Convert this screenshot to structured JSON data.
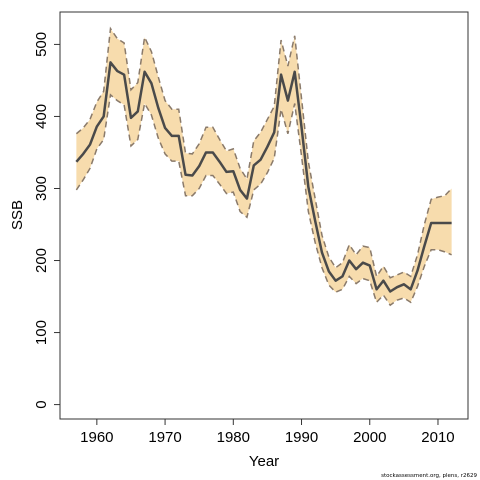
{
  "chart_data": {
    "type": "line",
    "title": "",
    "xlabel": "Year",
    "ylabel": "SSB",
    "xlim": [
      1954.6,
      2014.4
    ],
    "ylim": [
      -20,
      545
    ],
    "xticks": [
      1960,
      1970,
      1980,
      1990,
      2000,
      2010
    ],
    "yticks": [
      0,
      100,
      200,
      300,
      400,
      500
    ],
    "grid": false,
    "legend": "none",
    "colors": {
      "band": "#f7dcad",
      "line": "#4a4a4a",
      "bounds": "#8a7a6a"
    },
    "series": [
      {
        "x": [
          1957,
          1958,
          1959,
          1960,
          1961,
          1962,
          1963,
          1964,
          1965,
          1966,
          1967,
          1968,
          1969,
          1970,
          1971,
          1972,
          1973,
          1974,
          1975,
          1976,
          1977,
          1978,
          1979,
          1980,
          1981,
          1982,
          1983,
          1984,
          1985,
          1986,
          1987,
          1988,
          1989,
          1990,
          1991,
          1992,
          1993,
          1994,
          1995,
          1996,
          1997,
          1998,
          1999,
          2000,
          2001,
          2002,
          2003,
          2004,
          2005,
          2006,
          2007,
          2008,
          2009,
          2010,
          2011,
          2012
        ],
        "values": [
          337,
          348,
          361,
          386,
          400,
          475,
          463,
          458,
          398,
          407,
          462,
          446,
          412,
          384,
          373,
          373,
          319,
          318,
          331,
          350,
          350,
          337,
          323,
          324,
          298,
          286,
          332,
          340,
          358,
          378,
          458,
          422,
          462,
          385,
          302,
          255,
          211,
          185,
          172,
          178,
          200,
          188,
          197,
          193,
          160,
          172,
          157,
          163,
          167,
          160,
          186,
          220,
          252,
          252,
          252,
          252
        ],
        "lower": [
          298,
          312,
          328,
          355,
          368,
          430,
          422,
          416,
          359,
          368,
          418,
          402,
          370,
          348,
          338,
          338,
          290,
          290,
          300,
          318,
          318,
          306,
          293,
          295,
          268,
          260,
          298,
          306,
          322,
          342,
          410,
          376,
          418,
          345,
          268,
          225,
          190,
          166,
          156,
          160,
          178,
          168,
          175,
          172,
          142,
          152,
          138,
          145,
          148,
          142,
          164,
          192,
          215,
          215,
          212,
          208
        ],
        "upper": [
          376,
          384,
          396,
          420,
          435,
          522,
          508,
          502,
          437,
          447,
          510,
          490,
          455,
          422,
          410,
          410,
          349,
          348,
          362,
          385,
          385,
          368,
          352,
          355,
          328,
          313,
          366,
          378,
          396,
          414,
          506,
          470,
          512,
          425,
          337,
          286,
          235,
          205,
          190,
          197,
          222,
          208,
          220,
          218,
          178,
          192,
          176,
          180,
          184,
          178,
          208,
          250,
          285,
          288,
          290,
          300
        ]
      }
    ]
  },
  "footer": {
    "credit": "stockassessment.org, plens, r2629"
  }
}
